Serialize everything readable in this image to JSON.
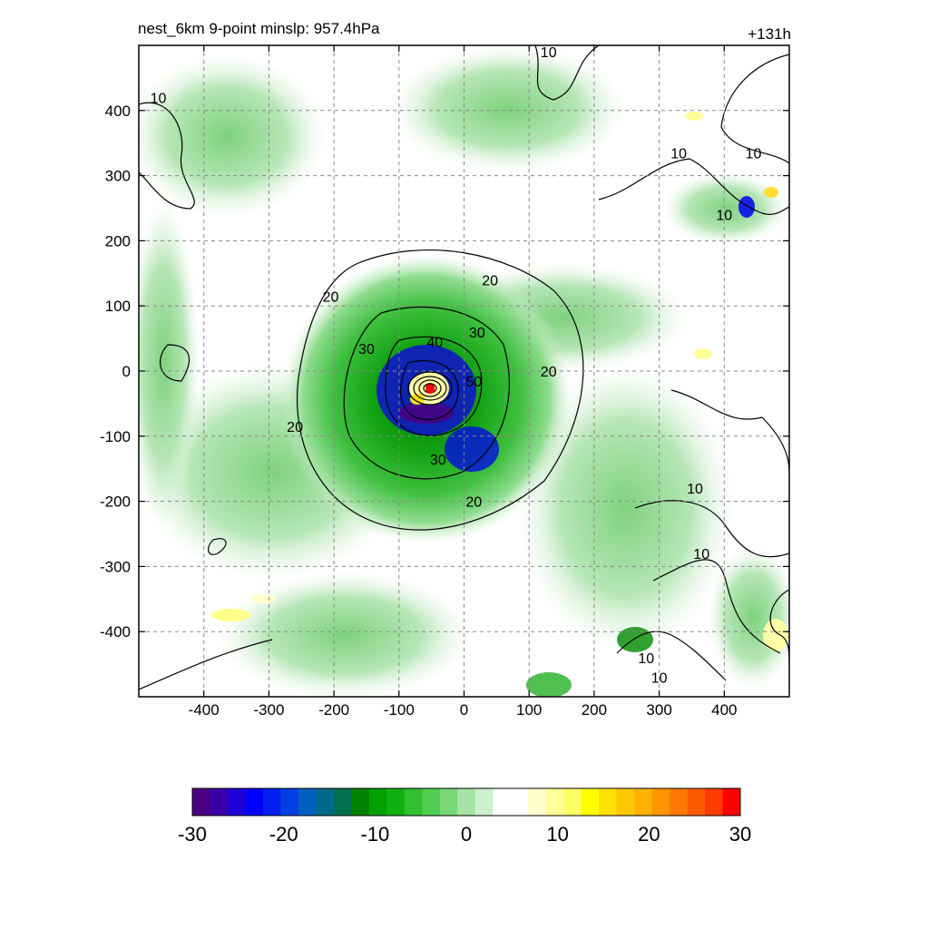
{
  "header": {
    "title_left": "nest_6km  9-point minslp: 957.4hPa",
    "title_right": "+131h"
  },
  "chart_data": {
    "type": "heatmap",
    "title": "nest_6km  9-point minslp: 957.4hPa",
    "forecast_hour_label": "+131h",
    "min_slp_hPa": 957.4,
    "xlim": [
      -500,
      500
    ],
    "ylim": [
      -500,
      500
    ],
    "x_ticks": [
      -400,
      -300,
      -200,
      -100,
      0,
      100,
      200,
      300,
      400
    ],
    "y_ticks": [
      400,
      300,
      200,
      100,
      0,
      -100,
      -200,
      -300,
      -400
    ],
    "grid": true,
    "grid_style": "dashed",
    "colorbar": {
      "orientation": "horizontal",
      "placement": "bottom",
      "range": [
        -30,
        30
      ],
      "ticks": [
        -30,
        -20,
        -10,
        0,
        10,
        20,
        30
      ],
      "tick_labels": [
        "-30",
        "-20",
        "-10",
        "0",
        "10",
        "20",
        "30"
      ],
      "colors": [
        "#4b0082",
        "#3a00a8",
        "#1e00d8",
        "#0000ff",
        "#0020f0",
        "#0040e0",
        "#0060c0",
        "#006a8a",
        "#007050",
        "#008000",
        "#00a000",
        "#10b010",
        "#30bf30",
        "#50cc50",
        "#78d878",
        "#a4e4a4",
        "#ccf0cc",
        "#ffffff",
        "#ffffff",
        "#ffffcc",
        "#ffff99",
        "#ffff66",
        "#ffff00",
        "#ffe000",
        "#ffc800",
        "#ffb000",
        "#ff9600",
        "#ff7800",
        "#ff5a00",
        "#ff3c00",
        "#ff0000"
      ]
    },
    "storm_center_km": [
      -52,
      -28
    ],
    "contour_labels": [
      {
        "text": "10",
        "x": -470,
        "y": 420
      },
      {
        "text": "10",
        "x": 130,
        "y": 490
      },
      {
        "text": "10",
        "x": 330,
        "y": 335
      },
      {
        "text": "10",
        "x": 445,
        "y": 335
      },
      {
        "text": "10",
        "x": 400,
        "y": 240
      },
      {
        "text": "10",
        "x": 355,
        "y": -180
      },
      {
        "text": "10",
        "x": 365,
        "y": -280
      },
      {
        "text": "10",
        "x": 280,
        "y": -440
      },
      {
        "text": "10",
        "x": 300,
        "y": -470
      },
      {
        "text": "20",
        "x": -205,
        "y": 115
      },
      {
        "text": "20",
        "x": 40,
        "y": 140
      },
      {
        "text": "20",
        "x": 130,
        "y": 0
      },
      {
        "text": "20",
        "x": -260,
        "y": -85
      },
      {
        "text": "20",
        "x": 15,
        "y": -200
      },
      {
        "text": "30",
        "x": -150,
        "y": 35
      },
      {
        "text": "30",
        "x": 20,
        "y": 60
      },
      {
        "text": "30",
        "x": -40,
        "y": -135
      },
      {
        "text": "40",
        "x": -45,
        "y": 45
      },
      {
        "text": "50",
        "x": 15,
        "y": -15
      }
    ]
  }
}
